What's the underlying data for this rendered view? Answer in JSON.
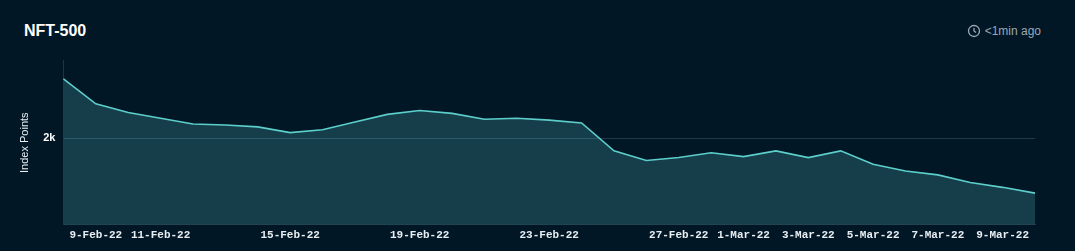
{
  "chart_data": {
    "type": "area",
    "title": "NFT-500",
    "subtitle": "<1min ago",
    "y_label": "Index Points",
    "categories": [
      null,
      "9-Feb-22",
      null,
      "11-Feb-22",
      null,
      null,
      null,
      "15-Feb-22",
      null,
      null,
      null,
      "19-Feb-22",
      null,
      null,
      null,
      "23-Feb-22",
      null,
      null,
      null,
      "27-Feb-22",
      null,
      "1-Mar-22",
      null,
      "3-Mar-22",
      null,
      "5-Mar-22",
      null,
      "7-Mar-22",
      null,
      "9-Mar-22",
      null
    ],
    "values": [
      3378,
      2800,
      2600,
      2467,
      2333,
      2311,
      2267,
      2133,
      2200,
      2378,
      2556,
      2644,
      2578,
      2444,
      2467,
      2422,
      2356,
      1711,
      1489,
      1556,
      1667,
      1578,
      1711,
      1556,
      1711,
      1400,
      1244,
      1156,
      978,
      867,
      733
    ],
    "color": "#5ccfcb",
    "ylim": [
      0,
      3800
    ],
    "yticks": [
      {
        "value": 2000,
        "label": "2k"
      }
    ],
    "grid": true
  }
}
